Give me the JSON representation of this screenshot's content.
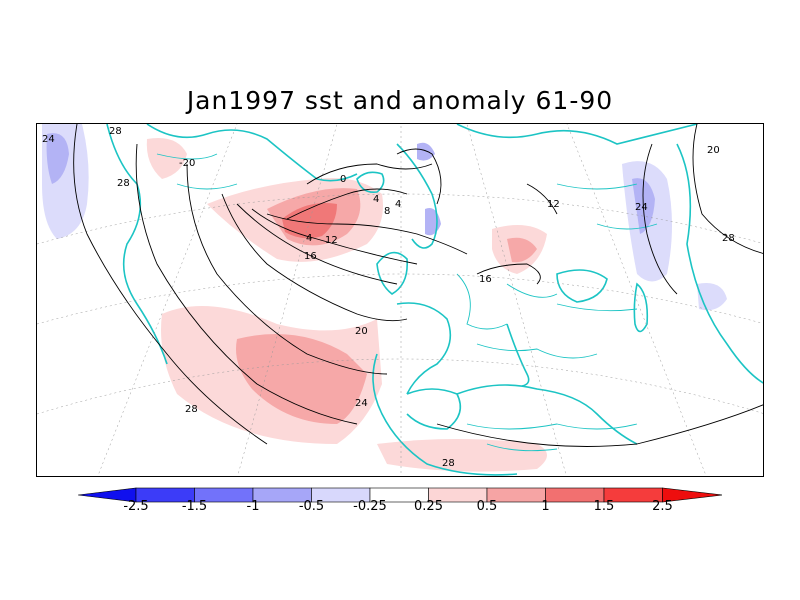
{
  "title": "Jan1997 sst and anomaly 61-90",
  "colors": {
    "land_outline": "#1cc4c4",
    "contour": "#000000",
    "pos_light": "#fcd9d9",
    "pos_mid": "#f6a8a8",
    "pos_strong": "#f07878",
    "neg_light": "#dcdcfb",
    "neg_mid": "#b3b3f5"
  },
  "contour_labels": [
    "28",
    "24",
    "20",
    "0",
    "4",
    "4",
    "8",
    "4",
    "12",
    "16",
    "16",
    "12",
    "20",
    "24",
    "28",
    "28",
    "24",
    "28",
    "28",
    "-20"
  ],
  "colorbar": {
    "ticks": [
      "-2.5",
      "-1.5",
      "-1",
      "-0.5",
      "-0.25",
      "0.25",
      "0.5",
      "1",
      "1.5",
      "2.5"
    ],
    "colors": [
      "#1010ee",
      "#3c3cf8",
      "#7272fa",
      "#a6a6f8",
      "#d8d8fc",
      "#ffffff",
      "#fcd6d6",
      "#f6a4a4",
      "#f27070",
      "#f53c3c",
      "#ee0e0e"
    ]
  }
}
